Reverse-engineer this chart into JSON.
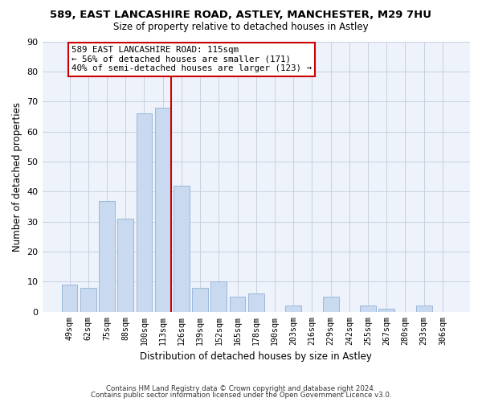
{
  "title_line1": "589, EAST LANCASHIRE ROAD, ASTLEY, MANCHESTER, M29 7HU",
  "title_line2": "Size of property relative to detached houses in Astley",
  "xlabel": "Distribution of detached houses by size in Astley",
  "ylabel": "Number of detached properties",
  "bar_labels": [
    "49sqm",
    "62sqm",
    "75sqm",
    "88sqm",
    "100sqm",
    "113sqm",
    "126sqm",
    "139sqm",
    "152sqm",
    "165sqm",
    "178sqm",
    "190sqm",
    "203sqm",
    "216sqm",
    "229sqm",
    "242sqm",
    "255sqm",
    "267sqm",
    "280sqm",
    "293sqm",
    "306sqm"
  ],
  "bar_values": [
    9,
    8,
    37,
    31,
    66,
    68,
    42,
    8,
    10,
    5,
    6,
    0,
    2,
    0,
    5,
    0,
    2,
    1,
    0,
    2,
    0
  ],
  "bar_color": "#c9daf0",
  "bar_edge_color": "#9ab8d8",
  "marker_index": 5,
  "annotation_line1": "589 EAST LANCASHIRE ROAD: 115sqm",
  "annotation_line2": "← 56% of detached houses are smaller (171)",
  "annotation_line3": "40% of semi-detached houses are larger (123) →",
  "marker_color": "#cc0000",
  "ylim": [
    0,
    90
  ],
  "yticks": [
    0,
    10,
    20,
    30,
    40,
    50,
    60,
    70,
    80,
    90
  ],
  "footer_line1": "Contains HM Land Registry data © Crown copyright and database right 2024.",
  "footer_line2": "Contains public sector information licensed under the Open Government Licence v3.0.",
  "bg_color": "#ffffff",
  "plot_bg_color": "#eef2fb",
  "grid_color": "#c8d0e0"
}
